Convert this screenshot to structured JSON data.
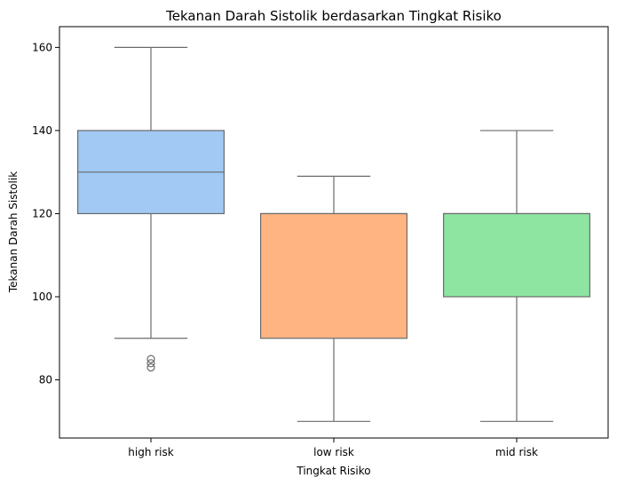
{
  "chart_data": {
    "type": "box",
    "title": "Tekanan Darah Sistolik berdasarkan Tingkat Risiko",
    "xlabel": "Tingkat Risiko",
    "ylabel": "Tekanan Darah Sistolik",
    "ylim": [
      66,
      165
    ],
    "yticks": [
      80,
      100,
      120,
      140,
      160
    ],
    "grid": false,
    "categories": [
      "high risk",
      "low risk",
      "mid risk"
    ],
    "boxes": [
      {
        "category": "high risk",
        "whisker_low": 90,
        "q1": 120,
        "median": 130,
        "q3": 140,
        "whisker_high": 160,
        "outliers": [
          85,
          84,
          83
        ],
        "color": "#a1c9f4"
      },
      {
        "category": "low risk",
        "whisker_low": 70,
        "q1": 90,
        "median": 120,
        "q3": 120,
        "whisker_high": 129,
        "outliers": [],
        "color": "#ffb482"
      },
      {
        "category": "mid risk",
        "whisker_low": 70,
        "q1": 100,
        "median": 120,
        "q3": 120,
        "whisker_high": 140,
        "outliers": [],
        "color": "#8de5a1"
      }
    ],
    "line_color": "#6b6b6b"
  }
}
